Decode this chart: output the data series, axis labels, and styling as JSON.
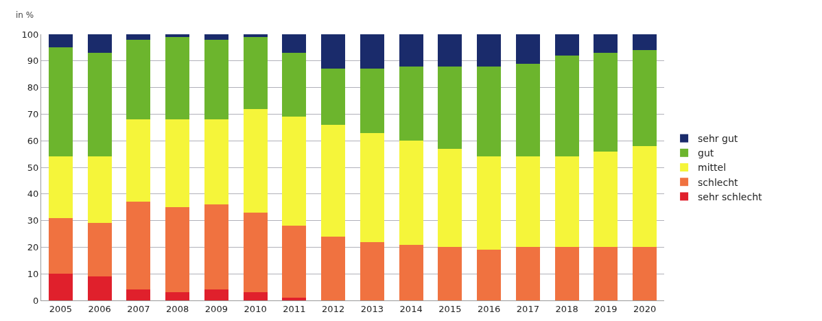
{
  "chart_data": {
    "type": "bar",
    "stacked": true,
    "ylabel": "in %",
    "categories": [
      "2005",
      "2006",
      "2007",
      "2008",
      "2009",
      "2010",
      "2011",
      "2012",
      "2013",
      "2014",
      "2015",
      "2016",
      "2017",
      "2018",
      "2019",
      "2020"
    ],
    "series": [
      {
        "name": "sehr schlecht",
        "color": "#e0202c",
        "values": [
          10,
          9,
          4,
          3,
          4,
          3,
          1,
          0,
          0,
          0,
          0,
          0,
          0,
          0,
          0,
          0
        ]
      },
      {
        "name": "schlecht",
        "color": "#f07240",
        "values": [
          21,
          20,
          33,
          32,
          32,
          30,
          27,
          24,
          22,
          21,
          20,
          19,
          20,
          20,
          20,
          20
        ]
      },
      {
        "name": "mittel",
        "color": "#f5f53a",
        "values": [
          23,
          25,
          31,
          33,
          32,
          39,
          41,
          42,
          41,
          39,
          37,
          35,
          34,
          34,
          36,
          38
        ]
      },
      {
        "name": "gut",
        "color": "#6cb52d",
        "values": [
          41,
          39,
          30,
          31,
          30,
          27,
          24,
          21,
          24,
          28,
          31,
          34,
          35,
          38,
          37,
          36
        ]
      },
      {
        "name": "sehr gut",
        "color": "#1a2b6b",
        "values": [
          5,
          7,
          2,
          1,
          2,
          1,
          7,
          13,
          13,
          12,
          12,
          12,
          11,
          8,
          7,
          6
        ]
      }
    ],
    "ylim": [
      0,
      100
    ],
    "yticks": [
      0,
      10,
      20,
      30,
      40,
      50,
      60,
      70,
      80,
      90,
      100
    ],
    "grid": "y",
    "legend": "right"
  }
}
